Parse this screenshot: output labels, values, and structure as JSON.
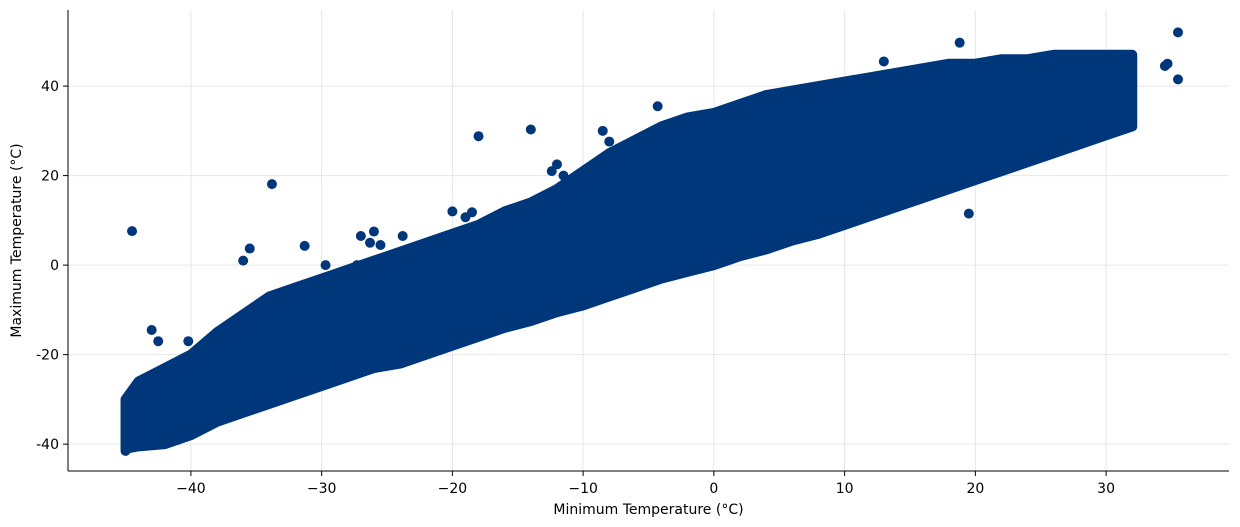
{
  "chart_data": {
    "type": "scatter",
    "title": "",
    "xlabel": "Minimum Temperature (°C)",
    "ylabel": "Maximum Temperature (°C)",
    "xlim": [
      -49.4,
      39.4
    ],
    "ylim": [
      -46,
      57
    ],
    "xticks": [
      -40,
      -30,
      -20,
      -10,
      0,
      10,
      20,
      30
    ],
    "xtick_labels": [
      "−40",
      "−30",
      "−20",
      "−10",
      "0",
      "10",
      "20",
      "30"
    ],
    "yticks": [
      -40,
      -20,
      0,
      20,
      40
    ],
    "ytick_labels": [
      "-40",
      "-20",
      "0",
      "20",
      "40"
    ],
    "grid": true,
    "marker_color": "#00377a",
    "series": [
      {
        "name": "",
        "color": "#00377a",
        "cloud": [
          [
            -45,
            -37
          ],
          [
            -44,
            -35
          ],
          [
            -43,
            -33
          ],
          [
            -42,
            -31
          ],
          [
            -41,
            -29
          ],
          [
            -40,
            -28
          ],
          [
            -39,
            -26
          ],
          [
            -38,
            -25
          ],
          [
            -37,
            -23
          ],
          [
            -36,
            -21
          ],
          [
            -35,
            -20
          ],
          [
            -34,
            -18
          ],
          [
            -33,
            -16
          ],
          [
            -32,
            -15
          ],
          [
            -31,
            -14
          ],
          [
            -30,
            -12
          ],
          [
            -29,
            -11
          ],
          [
            -28,
            -10
          ],
          [
            -27,
            -9
          ],
          [
            -26,
            -7
          ],
          [
            -25,
            -6
          ],
          [
            -24,
            -5
          ],
          [
            -23,
            -4
          ],
          [
            -22,
            -3
          ],
          [
            -21,
            -2
          ],
          [
            -20,
            -1
          ],
          [
            -19,
            0
          ],
          [
            -18,
            1
          ],
          [
            -17,
            2
          ],
          [
            -16,
            3
          ],
          [
            -15,
            4
          ],
          [
            -14,
            5
          ],
          [
            -13,
            6
          ],
          [
            -12,
            7
          ],
          [
            -11,
            8
          ],
          [
            -10,
            9
          ],
          [
            -9,
            10
          ],
          [
            -8,
            11
          ],
          [
            -7,
            12
          ],
          [
            -6,
            13
          ],
          [
            -5,
            14
          ],
          [
            -4,
            15
          ],
          [
            -3,
            16
          ],
          [
            -2,
            17
          ],
          [
            -1,
            18
          ],
          [
            0,
            19
          ],
          [
            1,
            20
          ],
          [
            2,
            21
          ],
          [
            3,
            22
          ],
          [
            4,
            23
          ],
          [
            5,
            24
          ],
          [
            6,
            25
          ],
          [
            7,
            26
          ],
          [
            8,
            27
          ],
          [
            9,
            28
          ],
          [
            10,
            29
          ],
          [
            11,
            30
          ],
          [
            12,
            31
          ],
          [
            13,
            32
          ],
          [
            14,
            33
          ],
          [
            15,
            34
          ],
          [
            16,
            34
          ],
          [
            17,
            35
          ],
          [
            18,
            36
          ],
          [
            19,
            36
          ],
          [
            20,
            37
          ],
          [
            21,
            38
          ],
          [
            22,
            38
          ],
          [
            23,
            39
          ],
          [
            24,
            40
          ],
          [
            25,
            40
          ],
          [
            26,
            41
          ],
          [
            27,
            42
          ],
          [
            28,
            42
          ],
          [
            29,
            43
          ],
          [
            30,
            44
          ],
          [
            31,
            44
          ],
          [
            32,
            45
          ]
        ],
        "cloud_lower_edge": [
          [
            -45,
            -41
          ],
          [
            -44,
            -40.5
          ],
          [
            -42,
            -40
          ],
          [
            -40,
            -38
          ],
          [
            -38,
            -35
          ],
          [
            -36,
            -33
          ],
          [
            -34,
            -31
          ],
          [
            -32,
            -29
          ],
          [
            -30,
            -27
          ],
          [
            -28,
            -25
          ],
          [
            -26,
            -23
          ],
          [
            -24,
            -22
          ],
          [
            -22,
            -20
          ],
          [
            -20,
            -18
          ],
          [
            -18,
            -16
          ],
          [
            -16,
            -14
          ],
          [
            -14,
            -12.5
          ],
          [
            -12,
            -10.5
          ],
          [
            -10,
            -9
          ],
          [
            -8,
            -7
          ],
          [
            -6,
            -5
          ],
          [
            -4,
            -3
          ],
          [
            -2,
            -1.5
          ],
          [
            0,
            0
          ],
          [
            2,
            2
          ],
          [
            4,
            3.5
          ],
          [
            6,
            5.5
          ],
          [
            8,
            7
          ],
          [
            10,
            9
          ],
          [
            12,
            11
          ],
          [
            14,
            13
          ],
          [
            16,
            15
          ],
          [
            18,
            17
          ],
          [
            20,
            19
          ],
          [
            22,
            21
          ],
          [
            24,
            23
          ],
          [
            26,
            25
          ],
          [
            28,
            27
          ],
          [
            30,
            29
          ],
          [
            32,
            31
          ]
        ],
        "cloud_upper_edge": [
          [
            -45,
            -30
          ],
          [
            -44,
            -26
          ],
          [
            -42,
            -23
          ],
          [
            -40,
            -20
          ],
          [
            -38,
            -15
          ],
          [
            -36,
            -11
          ],
          [
            -34,
            -7
          ],
          [
            -32,
            -5
          ],
          [
            -30,
            -3
          ],
          [
            -28,
            -1
          ],
          [
            -26,
            1
          ],
          [
            -24,
            3
          ],
          [
            -22,
            5
          ],
          [
            -20,
            7
          ],
          [
            -18,
            9
          ],
          [
            -16,
            12
          ],
          [
            -14,
            14
          ],
          [
            -12,
            17
          ],
          [
            -10,
            21
          ],
          [
            -8,
            25
          ],
          [
            -6,
            28
          ],
          [
            -4,
            31
          ],
          [
            -2,
            33
          ],
          [
            0,
            34
          ],
          [
            2,
            36
          ],
          [
            4,
            38
          ],
          [
            6,
            39
          ],
          [
            8,
            40
          ],
          [
            10,
            41
          ],
          [
            12,
            42
          ],
          [
            14,
            43
          ],
          [
            16,
            44
          ],
          [
            18,
            45
          ],
          [
            20,
            45
          ],
          [
            22,
            46
          ],
          [
            24,
            46
          ],
          [
            26,
            47
          ],
          [
            28,
            47
          ],
          [
            30,
            47
          ],
          [
            32,
            47
          ]
        ],
        "outliers": [
          [
            -44.5,
            7.6
          ],
          [
            -33.8,
            18.1
          ],
          [
            -35.5,
            3.7
          ],
          [
            -36,
            1
          ],
          [
            -31.3,
            4.3
          ],
          [
            -43,
            -14.5
          ],
          [
            -18,
            28.8
          ],
          [
            -14,
            30.3
          ],
          [
            -4.3,
            35.5
          ],
          [
            35.5,
            52
          ],
          [
            35.5,
            41.5
          ],
          [
            34.5,
            44.5
          ],
          [
            34.7,
            45
          ],
          [
            19.5,
            11.5
          ],
          [
            29.3,
            32.8
          ],
          [
            13,
            45.5
          ],
          [
            18.8,
            49.7
          ],
          [
            -42.5,
            -17
          ],
          [
            -44.8,
            -30
          ],
          [
            -44.7,
            -32.5
          ],
          [
            -41,
            -39
          ],
          [
            -45,
            -41.5
          ],
          [
            -44.3,
            -39.7
          ],
          [
            -40.2,
            -17
          ],
          [
            -39.5,
            -19.5
          ],
          [
            -27,
            6.5
          ],
          [
            -26,
            7.5
          ],
          [
            -27.3,
            0
          ],
          [
            -29.7,
            0
          ],
          [
            -25.5,
            4.5
          ],
          [
            -26.3,
            5
          ],
          [
            -20,
            12
          ],
          [
            -18.5,
            11.8
          ],
          [
            -19,
            10.7
          ],
          [
            -23.8,
            6.5
          ],
          [
            -11.5,
            20
          ],
          [
            -12.4,
            21
          ],
          [
            -12,
            22.5
          ],
          [
            -8,
            27.6
          ],
          [
            -8.5,
            30
          ]
        ]
      }
    ]
  }
}
